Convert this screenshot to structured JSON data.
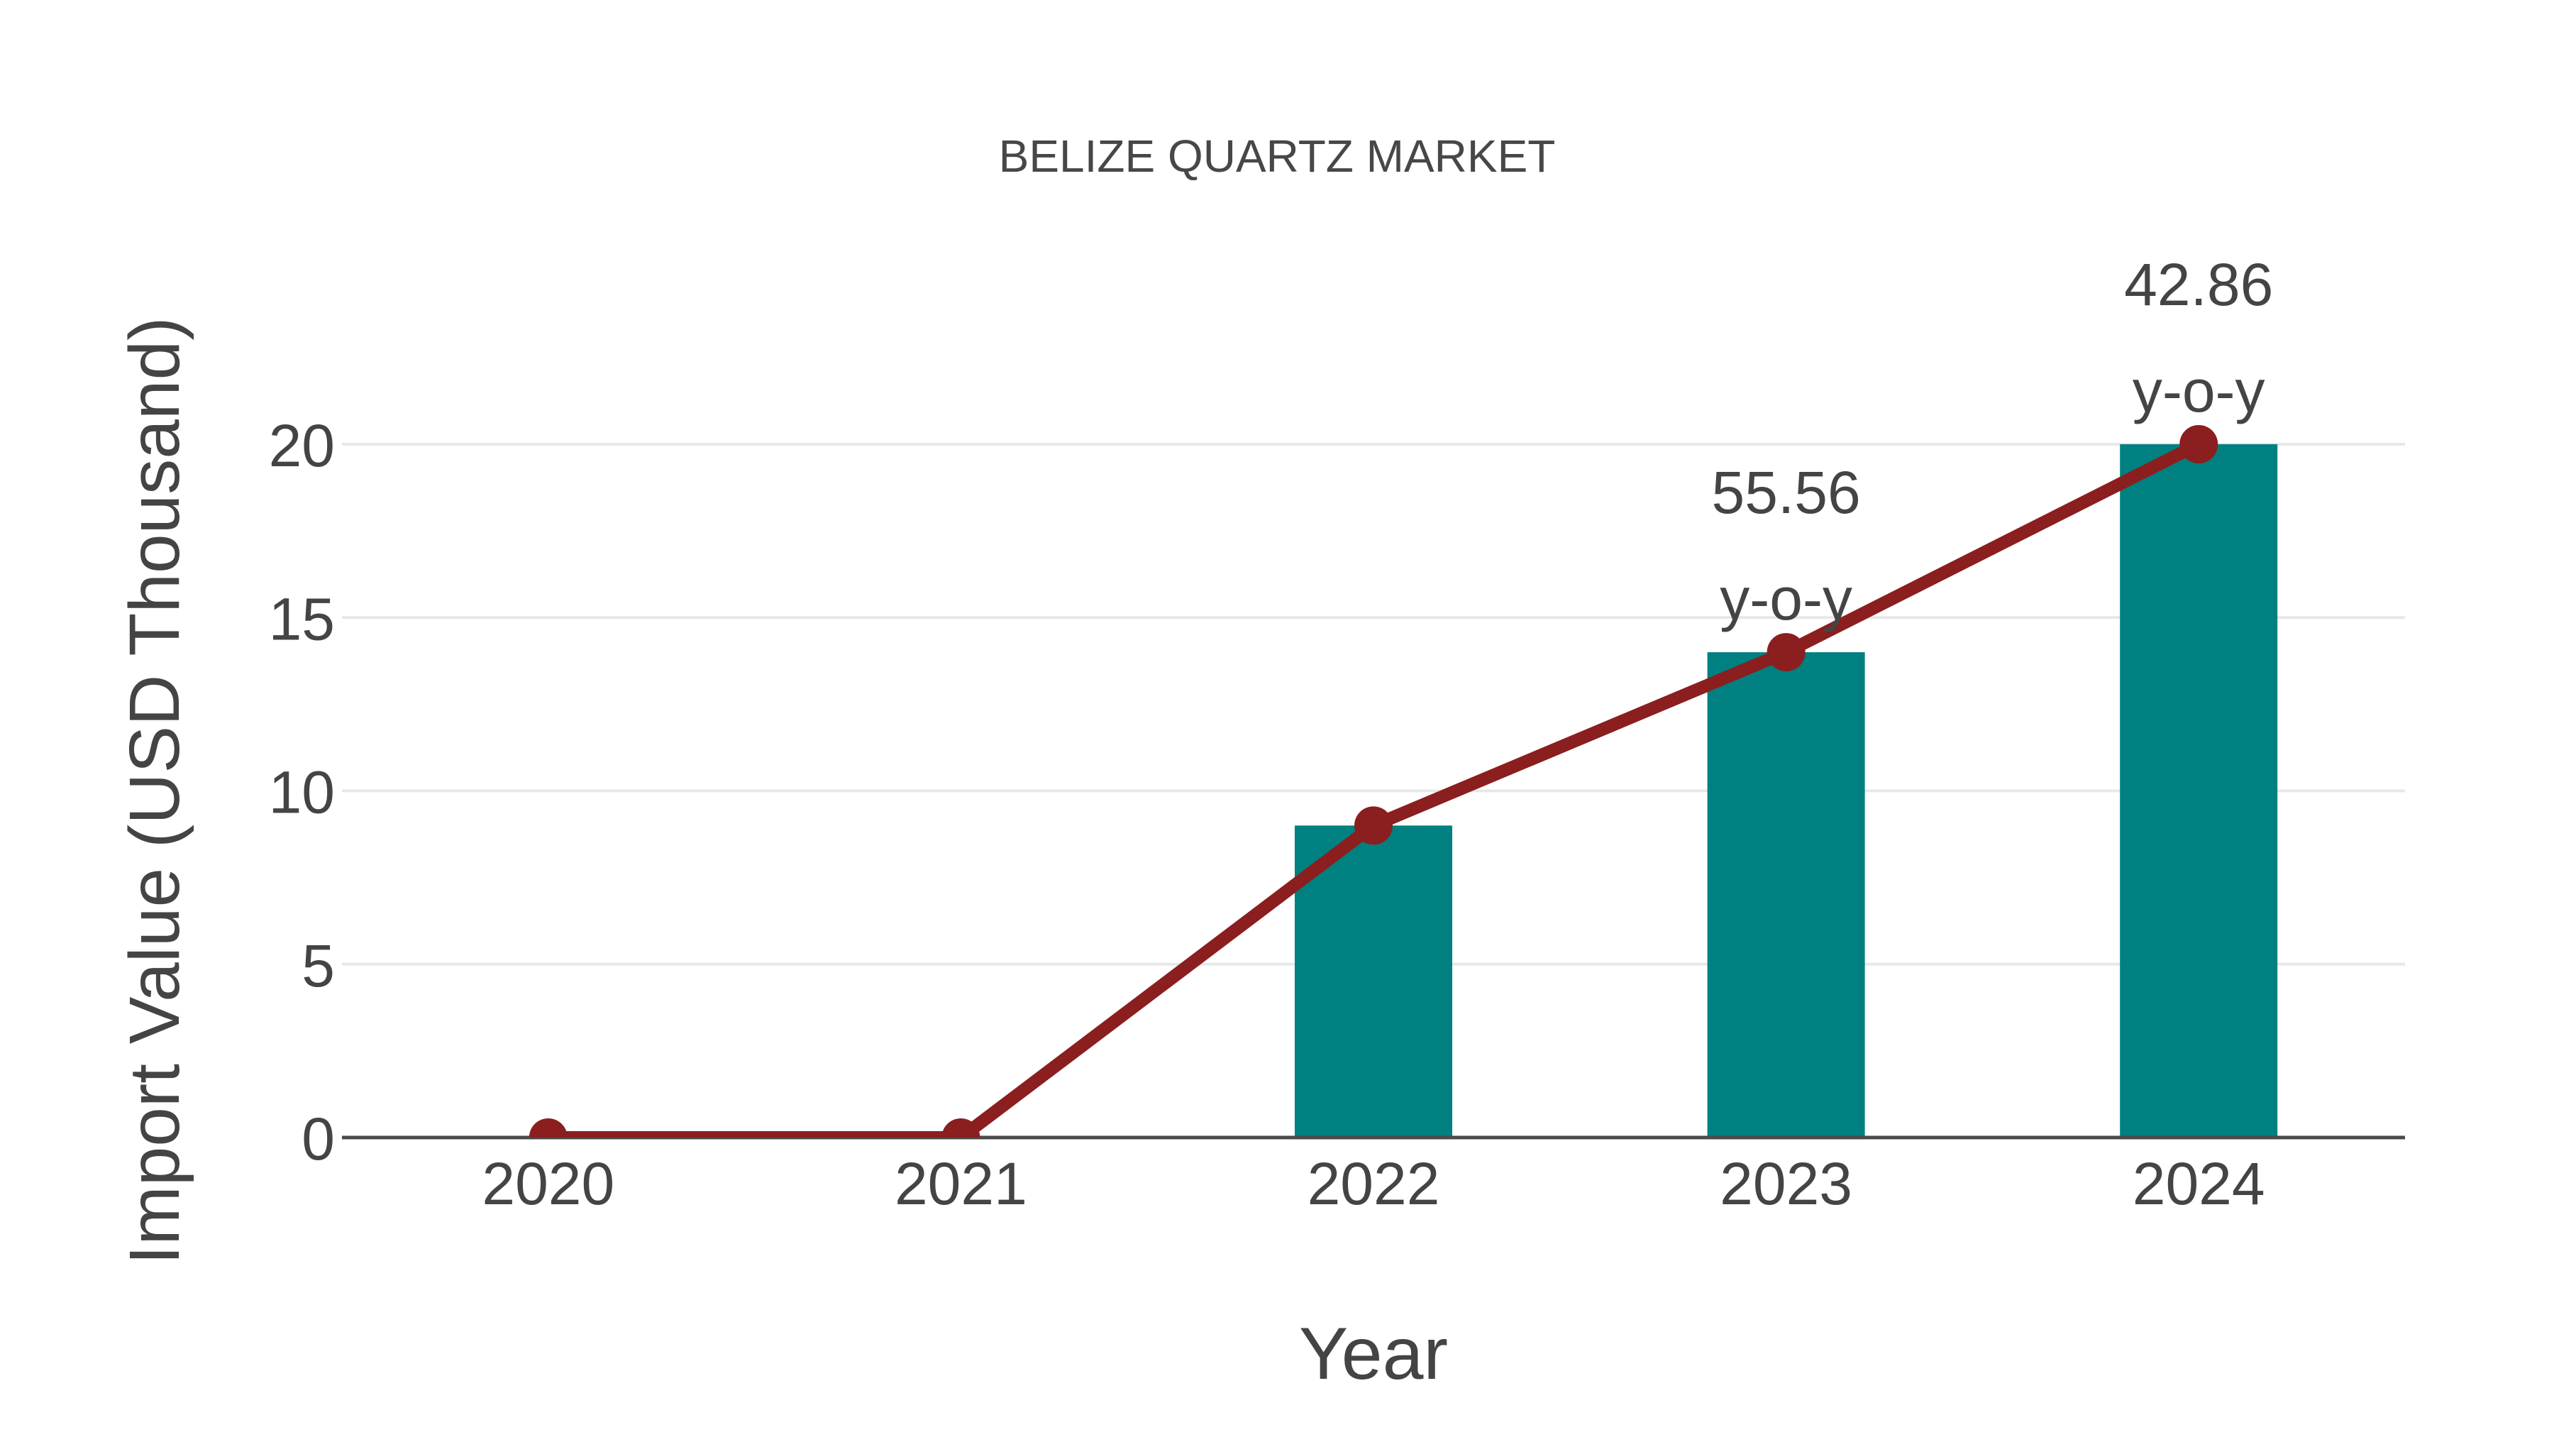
{
  "chart_data": {
    "type": "bar",
    "title": "BELIZE QUARTZ MARKET",
    "xlabel": "Year",
    "ylabel": "Import Value (USD Thousand)",
    "categories": [
      "2020",
      "2021",
      "2022",
      "2023",
      "2024"
    ],
    "series": [
      {
        "name": "import-value-bars",
        "type": "bar",
        "values": [
          0,
          0,
          9,
          14,
          20
        ]
      },
      {
        "name": "import-value-line",
        "type": "line",
        "values": [
          0,
          0,
          9,
          14,
          20
        ]
      }
    ],
    "yticks": [
      0,
      5,
      10,
      15,
      20
    ],
    "ylim": [
      0,
      20
    ],
    "grid": true,
    "legend_position": "none",
    "annotations": [
      {
        "category": "2023",
        "value": 14,
        "lines": [
          "55.56",
          "y-o-y"
        ]
      },
      {
        "category": "2024",
        "value": 20,
        "lines": [
          "42.86",
          "y-o-y"
        ]
      }
    ],
    "colors": {
      "bar": "#008080",
      "line": "#8B1E1E",
      "marker": "#8B1E1E",
      "grid": "#E8E8E8",
      "axis_line": "#4A4A4A",
      "tick_text": "#444444",
      "title_text": "#474747",
      "annotation_text": "#444444",
      "background": "#FFFFFF"
    }
  }
}
